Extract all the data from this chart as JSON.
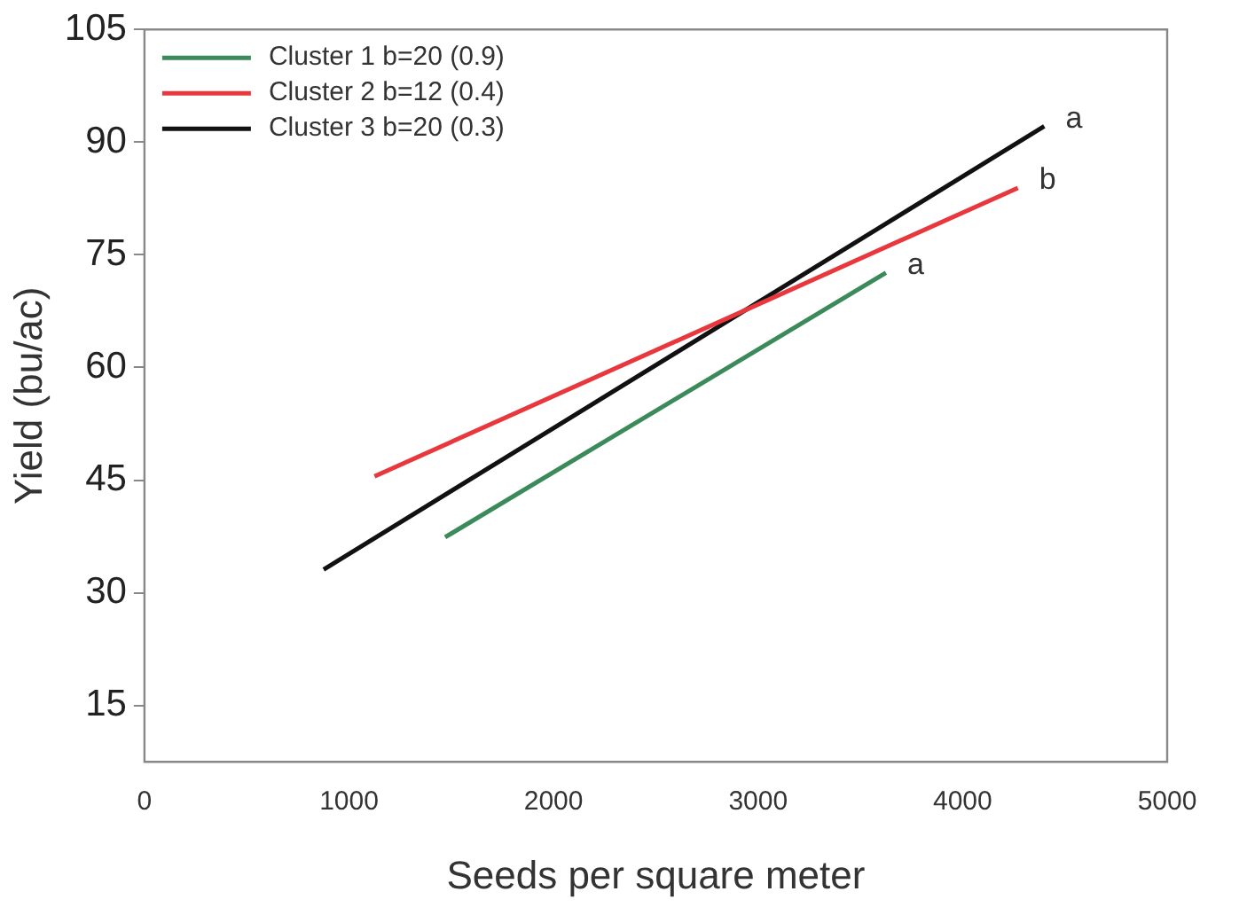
{
  "chart_data": {
    "type": "line",
    "xlabel": "Seeds per square meter",
    "ylabel": "Yield (bu/ac)",
    "xlim": [
      0,
      5000
    ],
    "xticks": [
      0,
      1000,
      2000,
      3000,
      4000,
      5000
    ],
    "ylim": [
      7.5,
      105
    ],
    "yticks": [
      15,
      30,
      45,
      60,
      75,
      90,
      105
    ],
    "grid": false,
    "legend": "top left",
    "marker": "none",
    "line_style": "solid",
    "series": [
      {
        "name": "Cluster 1 b=20 (0.9)",
        "color": "#3a8a5a",
        "x": [
          1470,
          3625
        ],
        "values": [
          37.4,
          72.6
        ]
      },
      {
        "name": "Cluster 2 b=12 (0.4)",
        "color": "#e8383d",
        "x": [
          1125,
          4270
        ],
        "values": [
          45.5,
          83.9
        ]
      },
      {
        "name": "Cluster 3 b=20 (0.3)",
        "color": "#111111",
        "x": [
          876,
          4399
        ],
        "values": [
          33.1,
          92.1
        ]
      }
    ],
    "annotations": [
      {
        "text": "a",
        "x": 3625,
        "y": 72.6
      },
      {
        "text": "b",
        "x": 4270,
        "y": 83.9
      },
      {
        "text": "a",
        "x": 4399,
        "y": 92.1
      }
    ]
  }
}
